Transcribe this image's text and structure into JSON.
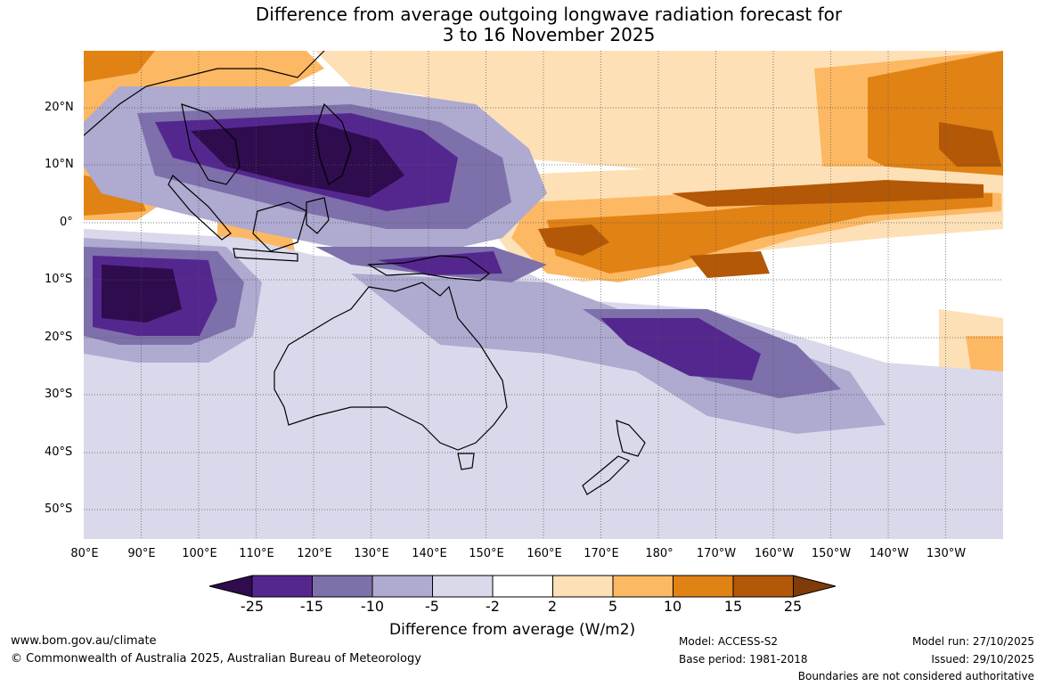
{
  "title_line1": "Difference from average outgoing longwave radiation forecast for",
  "title_line2": "3 to 16 November 2025",
  "lat_labels": [
    "20°N",
    "10°N",
    "0°",
    "10°S",
    "20°S",
    "30°S",
    "40°S",
    "50°S"
  ],
  "lon_labels": [
    "80°E",
    "90°E",
    "100°E",
    "110°E",
    "120°E",
    "130°E",
    "140°E",
    "150°E",
    "160°E",
    "170°E",
    "180°",
    "170°W",
    "160°W",
    "150°W",
    "140°W",
    "130°W"
  ],
  "colorbar": {
    "title": "Difference from average (W/m2)",
    "tick_labels": [
      "-25",
      "-15",
      "-10",
      "-5",
      "-2",
      "2",
      "5",
      "10",
      "15",
      "25"
    ],
    "colors": [
      "#2e0c4d",
      "#54278f",
      "#7e70ab",
      "#aeaad0",
      "#d9d9eb",
      "#ffffff",
      "#fee0b6",
      "#fdb863",
      "#e08214",
      "#b35806",
      "#7f3b08"
    ]
  },
  "footer": {
    "website": "www.bom.gov.au/climate",
    "copyright": "© Commonwealth of Australia 2025, Australian Bureau of Meteorology",
    "model": "Model: ACCESS-S2",
    "base_period": "Base period: 1981-2018",
    "model_run": "Model run: 27/10/2025",
    "issued": "Issued: 29/10/2025",
    "disclaimer": "Boundaries are not considered authoritative"
  }
}
